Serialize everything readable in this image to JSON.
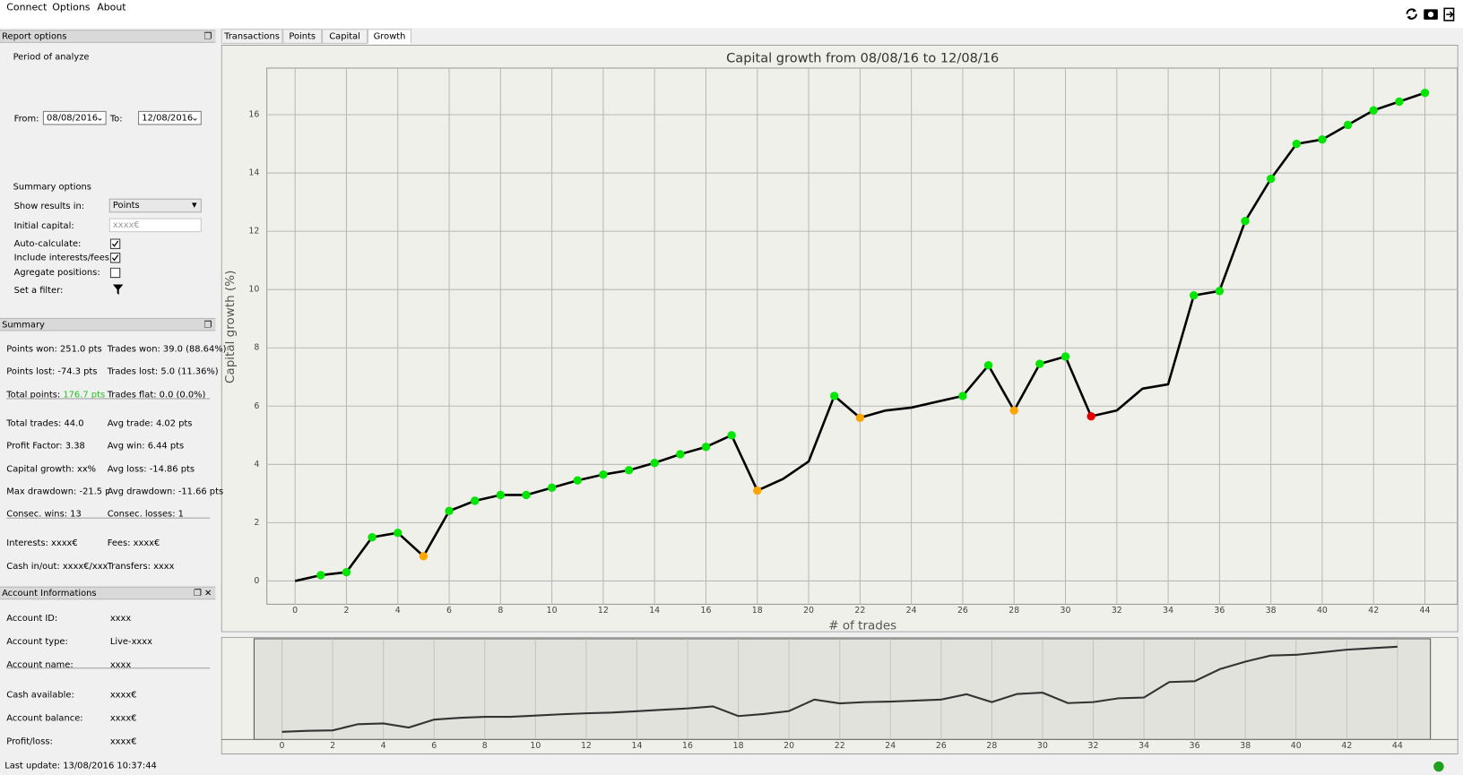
{
  "menu": [
    "Connect",
    "Options",
    "About"
  ],
  "tabs": [
    "Transactions",
    "Points",
    "Capital",
    "Growth"
  ],
  "report_options": {
    "title": "Report options",
    "period_label": "Period of analyze",
    "from_label": "From:",
    "from_value": "08/08/2016",
    "to_label": "To:",
    "to_value": "12/08/2016",
    "summary_options": "Summary options",
    "show_results_label": "Show results in:",
    "show_results_value": "Points",
    "initial_capital_label": "Initial capital:",
    "initial_capital_placeholder": "xxxx€",
    "checks": [
      {
        "label": "Auto-calculate:",
        "checked": true
      },
      {
        "label": "Include interests/fees:",
        "checked": true
      },
      {
        "label": "Agregate positions:",
        "checked": false
      }
    ],
    "filter_label": "Set a filter:"
  },
  "summary": {
    "title": "Summary",
    "groups": [
      [
        [
          {
            "label": "Points won:",
            "value": "251.0 pts"
          },
          {
            "label": "Trades won:",
            "value": "39.0 (88.64%)"
          }
        ],
        [
          {
            "label": "Points lost:",
            "value": "-74.3 pts"
          },
          {
            "label": "Trades lost:",
            "value": "5.0 (11.36%)"
          }
        ],
        [
          {
            "label": "Total points:",
            "value": "176.7 pts",
            "color": "#22c322"
          },
          {
            "label": "Trades flat:",
            "value": "0.0 (0.0%)"
          }
        ]
      ],
      [
        [
          {
            "label": "Total trades:",
            "value": "44.0"
          },
          {
            "label": "Avg trade:",
            "value": "4.02 pts"
          }
        ],
        [
          {
            "label": "Profit Factor:",
            "value": "3.38"
          },
          {
            "label": "Avg win:",
            "value": "6.44 pts"
          }
        ],
        [
          {
            "label": "Capital growth:",
            "value": "xx%"
          },
          {
            "label": "Avg loss:",
            "value": "-14.86 pts"
          }
        ],
        [
          {
            "label": "Max drawdown:",
            "value": "-21.5 pts"
          },
          {
            "label": "Avg drawdown:",
            "value": "-11.66 pts"
          }
        ],
        [
          {
            "label": "Consec. wins:",
            "value": "13"
          },
          {
            "label": "Consec. losses:",
            "value": "1"
          }
        ]
      ],
      [
        [
          {
            "label": "Interests:",
            "value": "xxxx€"
          },
          {
            "label": "Fees:",
            "value": "xxxx€"
          }
        ],
        [
          {
            "label": "Cash in/out:",
            "value": "xxxx€/xxx"
          },
          {
            "label": "Transfers:",
            "value": "xxxx"
          }
        ]
      ]
    ]
  },
  "account": {
    "title": "Account Informations",
    "groups": [
      [
        {
          "label": "Account ID:",
          "value": "xxxx"
        },
        {
          "label": "Account type:",
          "value": "Live-xxxx"
        },
        {
          "label": "Account name:",
          "value": "xxxx"
        }
      ],
      [
        {
          "label": "Cash available:",
          "value": "xxxx€"
        },
        {
          "label": "Account balance:",
          "value": "xxxx€"
        },
        {
          "label": "Profit/loss:",
          "value": "xxxx€"
        }
      ]
    ]
  },
  "status": "Last update: 13/08/2016 10:37:44",
  "chart_data": {
    "type": "line",
    "title": "Capital growth from 08/08/16 to 12/08/16",
    "x_label": "# of trades",
    "y_label": "Capital growth (%)",
    "x": [
      0,
      1,
      2,
      3,
      4,
      5,
      6,
      7,
      8,
      9,
      10,
      11,
      12,
      13,
      14,
      15,
      16,
      17,
      18,
      19,
      20,
      21,
      22,
      23,
      24,
      25,
      26,
      27,
      28,
      29,
      30,
      31,
      32,
      33,
      34,
      35,
      36,
      37,
      38,
      39,
      40,
      41,
      42,
      43,
      44
    ],
    "series": [
      {
        "color": "#000000",
        "values": [
          0,
          0.2,
          0.3,
          1.5,
          1.65,
          0.85,
          2.4,
          2.75,
          2.95,
          2.95,
          3.2,
          3.45,
          3.65,
          3.8,
          4.05,
          4.35,
          4.6,
          5.0,
          3.1,
          3.5,
          4.1,
          6.35,
          5.6,
          5.85,
          5.95,
          6.15,
          6.35,
          7.4,
          5.85,
          7.45,
          7.7,
          5.65,
          5.85,
          6.6,
          6.75,
          9.8,
          9.95,
          12.35,
          13.8,
          15.0,
          15.15,
          15.65,
          16.15,
          16.45,
          16.75
        ],
        "marker_colors": [
          null,
          "#00e600",
          "#00e600",
          "#00e600",
          "#00e600",
          "#ffa500",
          "#00e600",
          "#00e600",
          "#00e600",
          "#00e600",
          "#00e600",
          "#00e600",
          "#00e600",
          "#00e600",
          "#00e600",
          "#00e600",
          "#00e600",
          "#00e600",
          "#ffa500",
          null,
          null,
          "#00e600",
          "#ffa500",
          null,
          null,
          null,
          "#00e600",
          "#00e600",
          "#ffa500",
          "#00e600",
          "#00e600",
          "#e60000",
          null,
          null,
          null,
          "#00e600",
          "#00e600",
          "#00e600",
          "#00e600",
          "#00e600",
          "#00e600",
          "#00e600",
          "#00e600",
          "#00e600",
          "#00e600"
        ]
      }
    ],
    "xlim": [
      -1.1,
      45.3
    ],
    "ylim": [
      -0.8,
      17.6
    ],
    "xticks": [
      0,
      2,
      4,
      6,
      8,
      10,
      12,
      14,
      16,
      18,
      20,
      22,
      24,
      26,
      28,
      30,
      32,
      34,
      36,
      38,
      40,
      42,
      44
    ],
    "yticks": [
      0,
      2,
      4,
      6,
      8,
      10,
      12,
      14,
      16
    ],
    "grid": true,
    "overview": {
      "xlim": [
        -2.4,
        46.4
      ],
      "ylim": [
        -1.5,
        18.3
      ],
      "color": "#333333"
    }
  }
}
